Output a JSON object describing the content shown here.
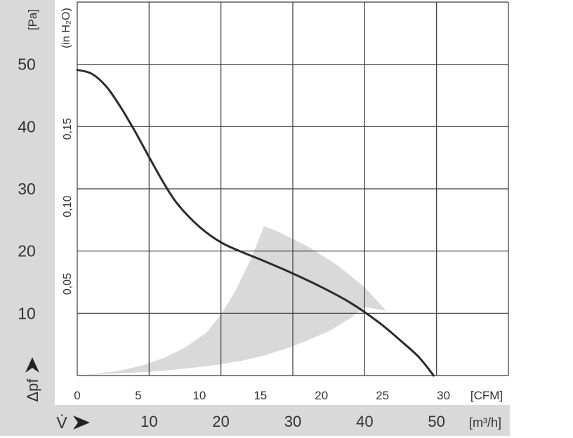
{
  "chart_data": {
    "type": "line",
    "y_unit_pa": "[Pa]",
    "y_unit_inh2o": "(in H₂O)",
    "y_symbol": "Δpf",
    "x_symbol": "V̇",
    "x_unit_m3h": "[m³/h]",
    "x_unit_cfm": "[CFM]",
    "pa_ticks": [
      "50",
      "40",
      "30",
      "20",
      "10"
    ],
    "pa_tick_values": [
      50,
      40,
      30,
      20,
      10
    ],
    "inh2o_ticks": [
      "0,15",
      "0,10",
      "0,05"
    ],
    "inh2o_tick_values": [
      0.15,
      0.1,
      0.05
    ],
    "m3h_ticks": [
      "10",
      "20",
      "30",
      "40",
      "50"
    ],
    "m3h_tick_values": [
      10,
      20,
      30,
      40,
      50
    ],
    "cfm_ticks": [
      "0",
      "5",
      "10",
      "15",
      "20",
      "25",
      "30"
    ],
    "cfm_tick_values": [
      0,
      5,
      10,
      15,
      20,
      25,
      30
    ],
    "xlim_m3h": [
      0,
      60
    ],
    "ylim_pa": [
      0,
      60
    ],
    "grid": true,
    "series": [
      {
        "x_m3h": [
          0,
          2,
          4,
          6,
          8,
          10,
          12,
          14,
          17,
          20,
          23,
          26,
          30,
          34,
          38,
          42,
          45,
          47.5,
          49.6
        ],
        "y_pa": [
          49.1,
          48.5,
          46.5,
          43.2,
          39.3,
          35.1,
          31.0,
          27.5,
          23.9,
          21.4,
          19.8,
          18.4,
          16.4,
          14.2,
          11.7,
          8.5,
          5.6,
          3.0,
          0
        ],
        "color": "#2b2b2b"
      }
    ],
    "shaded_region": {
      "x_m3h": [
        0,
        5,
        10,
        15,
        20,
        23,
        26,
        29,
        32,
        35,
        38,
        40,
        43,
        43,
        40,
        36,
        32,
        28,
        26,
        24,
        22,
        20,
        18,
        15,
        12,
        9,
        6,
        3,
        0
      ],
      "y_pa": [
        0,
        0.3,
        0.6,
        1.1,
        1.8,
        2.4,
        3.2,
        4.3,
        5.6,
        7.1,
        9.2,
        11.0,
        10.4,
        10.4,
        14.2,
        17.9,
        20.8,
        23.1,
        24.0,
        18.3,
        13.6,
        9.8,
        6.9,
        4.5,
        2.8,
        1.6,
        0.8,
        0.3,
        0
      ],
      "color": "#d9d9d9"
    },
    "band_color": "#d9d9d9",
    "grid_color": "#3a3a3a"
  }
}
